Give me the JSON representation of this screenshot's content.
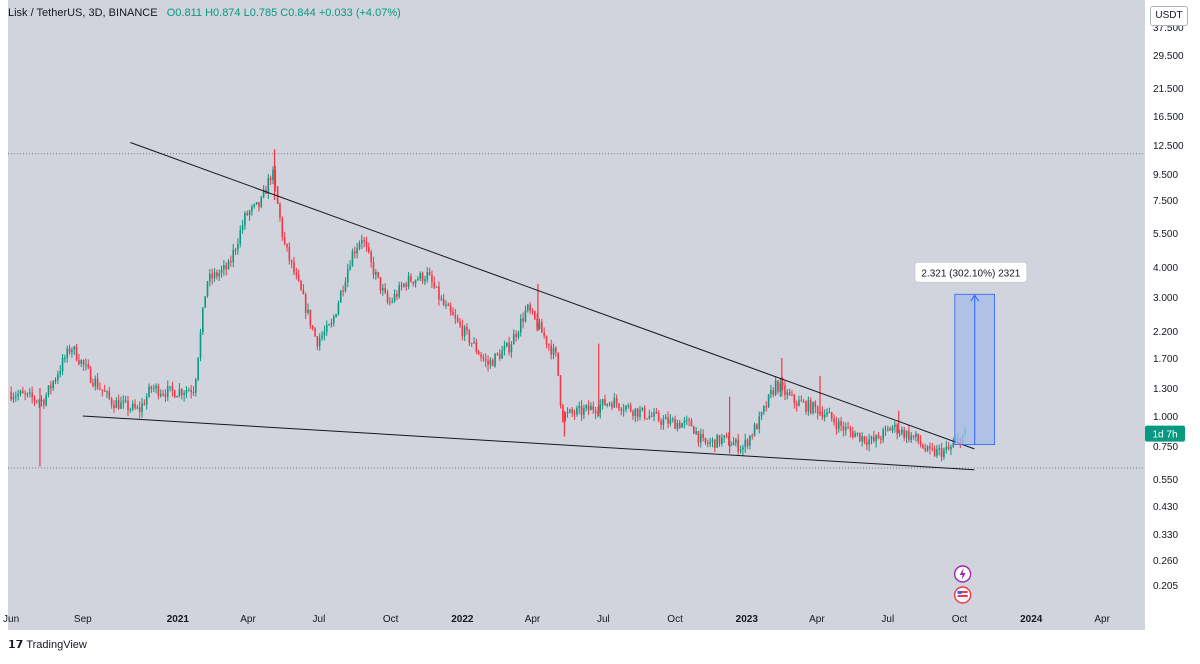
{
  "header": {
    "symbol": "Lisk / TetherUS, 3D, BINANCE",
    "ohlc": "O0.811 H0.874 L0.785 C0.844 +0.033 (+4.07%)"
  },
  "currency_button": "USDT",
  "price_badge": "1d 7h",
  "measure_label": "2.321 (302.10%) 2321",
  "branding": "TradingView",
  "colors": {
    "up": "#089981",
    "down": "#f23645",
    "background": "#d1d4dc",
    "trendline": "#131722",
    "measure_fill": "#a7bbe8",
    "measure_line": "#2962ff"
  },
  "icons": [
    "lightning-icon",
    "us-flag-icon"
  ],
  "chart_data": {
    "type": "candlestick",
    "title": "Lisk / TetherUS, 3D, BINANCE",
    "scale": "log",
    "y_ticks": [
      "37.500",
      "29.500",
      "21.500",
      "16.500",
      "12.500",
      "9.500",
      "7.500",
      "5.500",
      "4.000",
      "3.000",
      "2.200",
      "1.700",
      "1.300",
      "1.000",
      "0.750",
      "0.550",
      "0.430",
      "0.330",
      "0.260",
      "0.205"
    ],
    "x_ticks": [
      "Jun",
      "Sep",
      "2021",
      "Apr",
      "Jul",
      "Oct",
      "2022",
      "Apr",
      "Jul",
      "Oct",
      "2023",
      "Apr",
      "Jul",
      "Oct",
      "2024",
      "Apr"
    ],
    "ylim": [
      0.18,
      42
    ],
    "series_path": [
      [
        "2020-06-01",
        1.25
      ],
      [
        "2020-07-15",
        1.15
      ],
      [
        "2020-08-20",
        1.9
      ],
      [
        "2020-09-10",
        1.5
      ],
      [
        "2020-10-10",
        1.15
      ],
      [
        "2020-11-15",
        1.05
      ],
      [
        "2020-12-01",
        1.3
      ],
      [
        "2020-12-25",
        1.25
      ],
      [
        "2021-01-25",
        1.3
      ],
      [
        "2021-02-10",
        3.5
      ],
      [
        "2021-03-10",
        4.0
      ],
      [
        "2021-04-01",
        6.5
      ],
      [
        "2021-04-20",
        7.2
      ],
      [
        "2021-05-05",
        9.8
      ],
      [
        "2021-05-20",
        5.0
      ],
      [
        "2021-06-10",
        3.2
      ],
      [
        "2021-07-01",
        2.0
      ],
      [
        "2021-07-20",
        2.3
      ],
      [
        "2021-08-15",
        4.5
      ],
      [
        "2021-08-28",
        5.3
      ],
      [
        "2021-09-10",
        4.0
      ],
      [
        "2021-10-01",
        2.8
      ],
      [
        "2021-10-25",
        3.5
      ],
      [
        "2021-11-20",
        3.7
      ],
      [
        "2021-12-10",
        2.8
      ],
      [
        "2022-01-10",
        2.1
      ],
      [
        "2022-02-05",
        1.6
      ],
      [
        "2022-03-05",
        1.9
      ],
      [
        "2022-03-28",
        2.7
      ],
      [
        "2022-04-15",
        2.2
      ],
      [
        "2022-05-05",
        1.7
      ],
      [
        "2022-05-12",
        1.0
      ],
      [
        "2022-06-10",
        1.05
      ],
      [
        "2022-07-15",
        1.15
      ],
      [
        "2022-08-15",
        1.05
      ],
      [
        "2022-09-20",
        0.95
      ],
      [
        "2022-10-25",
        0.92
      ],
      [
        "2022-11-10",
        0.76
      ],
      [
        "2022-12-05",
        0.8
      ],
      [
        "2022-12-30",
        0.74
      ],
      [
        "2023-01-20",
        0.95
      ],
      [
        "2023-02-10",
        1.35
      ],
      [
        "2023-03-05",
        1.15
      ],
      [
        "2023-04-10",
        1.05
      ],
      [
        "2023-05-10",
        0.88
      ],
      [
        "2023-06-15",
        0.78
      ],
      [
        "2023-07-10",
        0.9
      ],
      [
        "2023-08-10",
        0.8
      ],
      [
        "2023-08-25",
        0.7
      ],
      [
        "2023-09-20",
        0.72
      ],
      [
        "2023-10-10",
        0.84
      ]
    ],
    "spikes": [
      {
        "date": "2020-07-08",
        "low": 0.62,
        "high": 1.3
      },
      {
        "date": "2021-05-05",
        "low": 7.5,
        "high": 12.0
      },
      {
        "date": "2022-04-08",
        "low": 2.2,
        "high": 3.4
      },
      {
        "date": "2022-05-12",
        "low": 0.82,
        "high": 1.05
      },
      {
        "date": "2022-06-25",
        "low": 1.0,
        "high": 1.95
      },
      {
        "date": "2022-12-10",
        "low": 0.7,
        "high": 1.2
      },
      {
        "date": "2023-02-15",
        "low": 1.2,
        "high": 1.7
      },
      {
        "date": "2023-04-05",
        "low": 1.0,
        "high": 1.45
      },
      {
        "date": "2023-07-15",
        "low": 0.85,
        "high": 1.05
      }
    ],
    "trendlines": [
      {
        "from": [
          "2020-11-01",
          12.8
        ],
        "to": [
          "2023-10-20",
          0.73
        ]
      },
      {
        "from": [
          "2020-09-01",
          1.0
        ],
        "to": [
          "2023-10-20",
          0.6
        ]
      }
    ],
    "horizontal_levels": [
      11.5,
      0.61
    ],
    "measure": {
      "from_date": "2023-09-25",
      "to_date": "2023-11-15",
      "low": 0.76,
      "high": 3.08,
      "label": "2.321 (302.10%) 2321"
    },
    "last_price": 0.844
  }
}
